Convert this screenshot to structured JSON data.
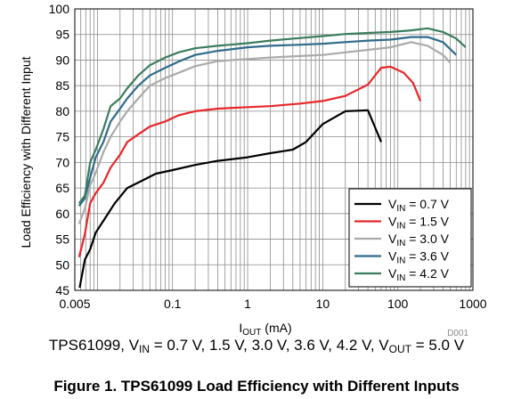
{
  "chart_data": {
    "type": "line",
    "x_scale": "log",
    "xlim": [
      0.005,
      1000
    ],
    "ylim": [
      45,
      100
    ],
    "grid": true,
    "legend_position": "bottom-right",
    "xlabel_main": "I",
    "xlabel_sub": "OUT",
    "xlabel_unit": " (mA)",
    "ylabel": "Load Efficiency with Different Input",
    "x_ticks": [
      0.005,
      0.1,
      1,
      10,
      100,
      1000
    ],
    "x_tick_labels": [
      "0.005",
      "0.1",
      "1",
      "10",
      "100",
      "1000"
    ],
    "y_ticks": [
      45,
      50,
      55,
      60,
      65,
      70,
      75,
      80,
      85,
      90,
      95,
      100
    ],
    "reference_code": "D001",
    "series": [
      {
        "name_main": "V",
        "name_sub": "IN",
        "name_value": " = 0.7 V",
        "color": "#000000",
        "x": [
          0.0058,
          0.0068,
          0.008,
          0.0095,
          0.0125,
          0.017,
          0.025,
          0.04,
          0.06,
          0.1,
          0.2,
          0.4,
          1,
          2,
          3,
          4,
          6,
          10,
          20,
          40,
          60
        ],
        "y": [
          45.5,
          51,
          53,
          56.3,
          59,
          62,
          65,
          66.5,
          67.8,
          68.5,
          69.5,
          70.3,
          71,
          71.8,
          72.2,
          72.5,
          74,
          77.5,
          80,
          80.2,
          74
        ]
      },
      {
        "name_main": "V",
        "name_sub": "IN",
        "name_value": " = 1.5 V",
        "color": "#e8262a",
        "x": [
          0.0057,
          0.0068,
          0.008,
          0.0095,
          0.012,
          0.015,
          0.02,
          0.025,
          0.035,
          0.05,
          0.08,
          0.12,
          0.2,
          0.4,
          1,
          2,
          5,
          10,
          20,
          40,
          60,
          80,
          120,
          160,
          200
        ],
        "y": [
          51.5,
          56,
          62,
          64,
          66,
          69,
          71.5,
          74,
          75.5,
          77,
          78,
          79.2,
          80,
          80.5,
          80.8,
          81,
          81.5,
          82,
          83,
          85.2,
          88.5,
          88.7,
          87.5,
          85.5,
          82
        ]
      },
      {
        "name_main": "V",
        "name_sub": "IN",
        "name_value": " = 3.0 V",
        "color": "#aaaaaa",
        "x": [
          0.0057,
          0.0068,
          0.008,
          0.0095,
          0.012,
          0.015,
          0.02,
          0.025,
          0.035,
          0.05,
          0.08,
          0.12,
          0.2,
          0.4,
          1,
          2,
          5,
          10,
          20,
          40,
          80,
          150,
          250,
          400,
          500
        ],
        "y": [
          58,
          61,
          65.5,
          68,
          72,
          75,
          78,
          80,
          82.5,
          85,
          86.5,
          87.5,
          88.8,
          89.8,
          90.2,
          90.5,
          90.8,
          91,
          91.5,
          92,
          92.5,
          93.5,
          92.8,
          91,
          89.5
        ]
      },
      {
        "name_main": "V",
        "name_sub": "IN",
        "name_value": " = 3.6 V",
        "color": "#2f6b8a",
        "x": [
          0.0057,
          0.0068,
          0.008,
          0.0095,
          0.012,
          0.015,
          0.02,
          0.025,
          0.035,
          0.05,
          0.08,
          0.12,
          0.2,
          0.4,
          1,
          2,
          5,
          10,
          20,
          40,
          80,
          150,
          250,
          400,
          600
        ],
        "y": [
          61.5,
          63,
          67,
          71,
          74,
          78,
          80.5,
          82.5,
          85,
          87,
          88.5,
          89.7,
          91,
          91.8,
          92.5,
          92.8,
          93,
          93.2,
          93.5,
          93.8,
          94,
          94.5,
          94.5,
          93.5,
          91
        ]
      },
      {
        "name_main": "V",
        "name_sub": "IN",
        "name_value": " = 4.2 V",
        "color": "#3a7d5c",
        "x": [
          0.0057,
          0.0068,
          0.008,
          0.0095,
          0.012,
          0.015,
          0.02,
          0.025,
          0.035,
          0.05,
          0.08,
          0.12,
          0.2,
          0.4,
          1,
          2,
          5,
          10,
          20,
          40,
          80,
          150,
          250,
          400,
          600,
          800
        ],
        "y": [
          62,
          63.5,
          70,
          72.5,
          76.5,
          81,
          82.5,
          84.5,
          87,
          89,
          90.5,
          91.5,
          92.3,
          92.8,
          93.3,
          93.8,
          94.3,
          94.7,
          95.1,
          95.3,
          95.5,
          95.8,
          96.2,
          95.5,
          94.2,
          92.5
        ]
      }
    ]
  },
  "subtitle": {
    "part1": "TPS61099, V",
    "sub1": "IN",
    "part2": " = 0.7 V, 1.5 V, 3.0 V, 3.6 V, 4.2 V, V",
    "sub2": "OUT",
    "part3": " = 5.0 V"
  },
  "caption": "Figure 1. TPS61099 Load Efficiency with Different Inputs"
}
